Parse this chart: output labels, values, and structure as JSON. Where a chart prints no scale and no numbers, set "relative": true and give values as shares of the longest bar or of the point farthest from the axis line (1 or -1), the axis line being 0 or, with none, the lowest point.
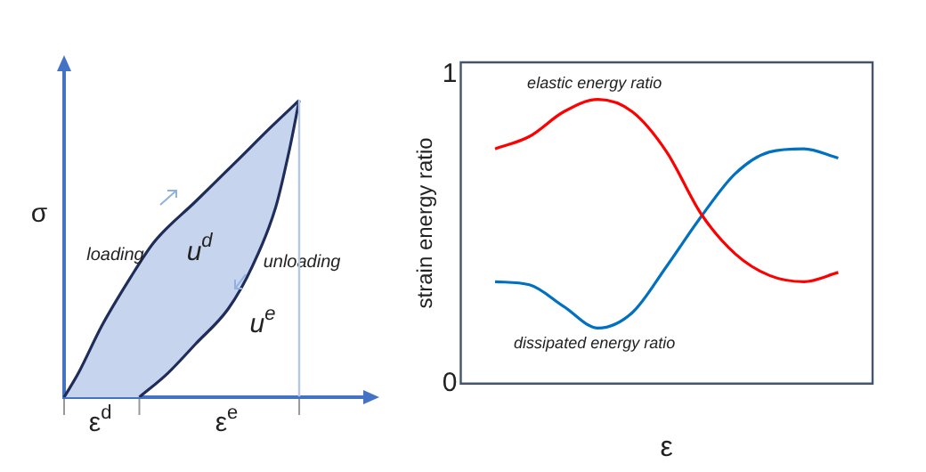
{
  "chart_data": [
    {
      "type": "line",
      "relative": true,
      "ylabel": "σ",
      "legend": false,
      "grid": false,
      "marker": "none",
      "line_style": "solid",
      "categories": [
        null,
        null,
        null,
        null,
        null,
        null,
        null,
        null,
        null,
        null,
        null,
        null,
        null,
        null,
        null,
        null,
        null,
        null,
        null,
        null,
        null,
        null,
        null,
        null,
        null,
        null,
        null,
        null,
        null,
        null,
        null,
        null,
        null,
        null,
        null,
        null,
        null,
        null,
        null,
        null,
        null,
        null,
        null,
        null,
        null,
        null,
        null,
        null,
        null,
        null,
        null,
        null,
        null,
        null,
        null,
        null,
        null,
        null,
        null,
        null,
        null,
        null,
        null,
        null,
        null
      ],
      "series": [
        {
          "color": "#1f2d5a",
          "values": [
            0,
            null,
            null,
            0.08,
            null,
            null,
            null,
            null,
            0.24,
            null,
            null,
            null,
            null,
            null,
            0.4,
            null,
            null,
            null,
            null,
            0.52,
            null,
            null,
            null,
            null,
            null,
            null,
            null,
            null,
            0.66,
            null,
            null,
            null,
            null,
            null,
            null,
            null,
            null,
            0.8,
            null,
            null,
            null,
            null,
            null,
            null,
            0.91,
            null,
            null,
            null,
            null,
            null,
            1,
            null,
            null,
            null,
            null,
            null,
            null,
            null,
            null,
            null,
            null,
            null,
            null,
            null,
            null
          ]
        },
        {
          "color": "#1f2d5a",
          "values": [
            null,
            null,
            null,
            null,
            null,
            null,
            null,
            null,
            null,
            null,
            null,
            null,
            null,
            null,
            null,
            null,
            0,
            null,
            null,
            null,
            null,
            null,
            0.08,
            null,
            null,
            null,
            null,
            null,
            0.18,
            null,
            null,
            null,
            null,
            null,
            null,
            0.3,
            null,
            null,
            null,
            null,
            0.44,
            null,
            null,
            null,
            null,
            0.64,
            null,
            null,
            0.84,
            null,
            1,
            null,
            null,
            null,
            null,
            null,
            null,
            null,
            null,
            null,
            null,
            null,
            null,
            null,
            null
          ]
        }
      ],
      "annotations": [
        "loading",
        "unloading",
        "u$^{d}$",
        "u$^{e}$",
        "ε$^{d}$",
        "ε$^{e}$"
      ]
    },
    {
      "type": "line",
      "xlabel": "ε",
      "ylabel": "strain energy ratio",
      "legend": false,
      "grid": false,
      "marker": "none",
      "line_style": "solid",
      "ylim": [
        0,
        1.04
      ],
      "yticks": [
        0,
        1
      ],
      "categories": [
        null,
        null,
        null,
        null,
        null,
        null,
        null,
        null,
        null,
        null,
        null,
        null,
        null
      ],
      "series": [
        {
          "name": "elastic energy ratio",
          "color": "#ff0000",
          "values": [
            null,
            0.76,
            0.8,
            0.88,
            0.92,
            0.88,
            0.75,
            0.55,
            0.42,
            0.35,
            0.33,
            0.36,
            null
          ]
        },
        {
          "name": "dissipated energy ratio",
          "color": "#0070c0",
          "values": [
            null,
            0.33,
            0.32,
            0.25,
            0.18,
            0.23,
            0.38,
            0.54,
            0.68,
            0.75,
            0.76,
            0.73,
            null
          ]
        }
      ]
    }
  ]
}
